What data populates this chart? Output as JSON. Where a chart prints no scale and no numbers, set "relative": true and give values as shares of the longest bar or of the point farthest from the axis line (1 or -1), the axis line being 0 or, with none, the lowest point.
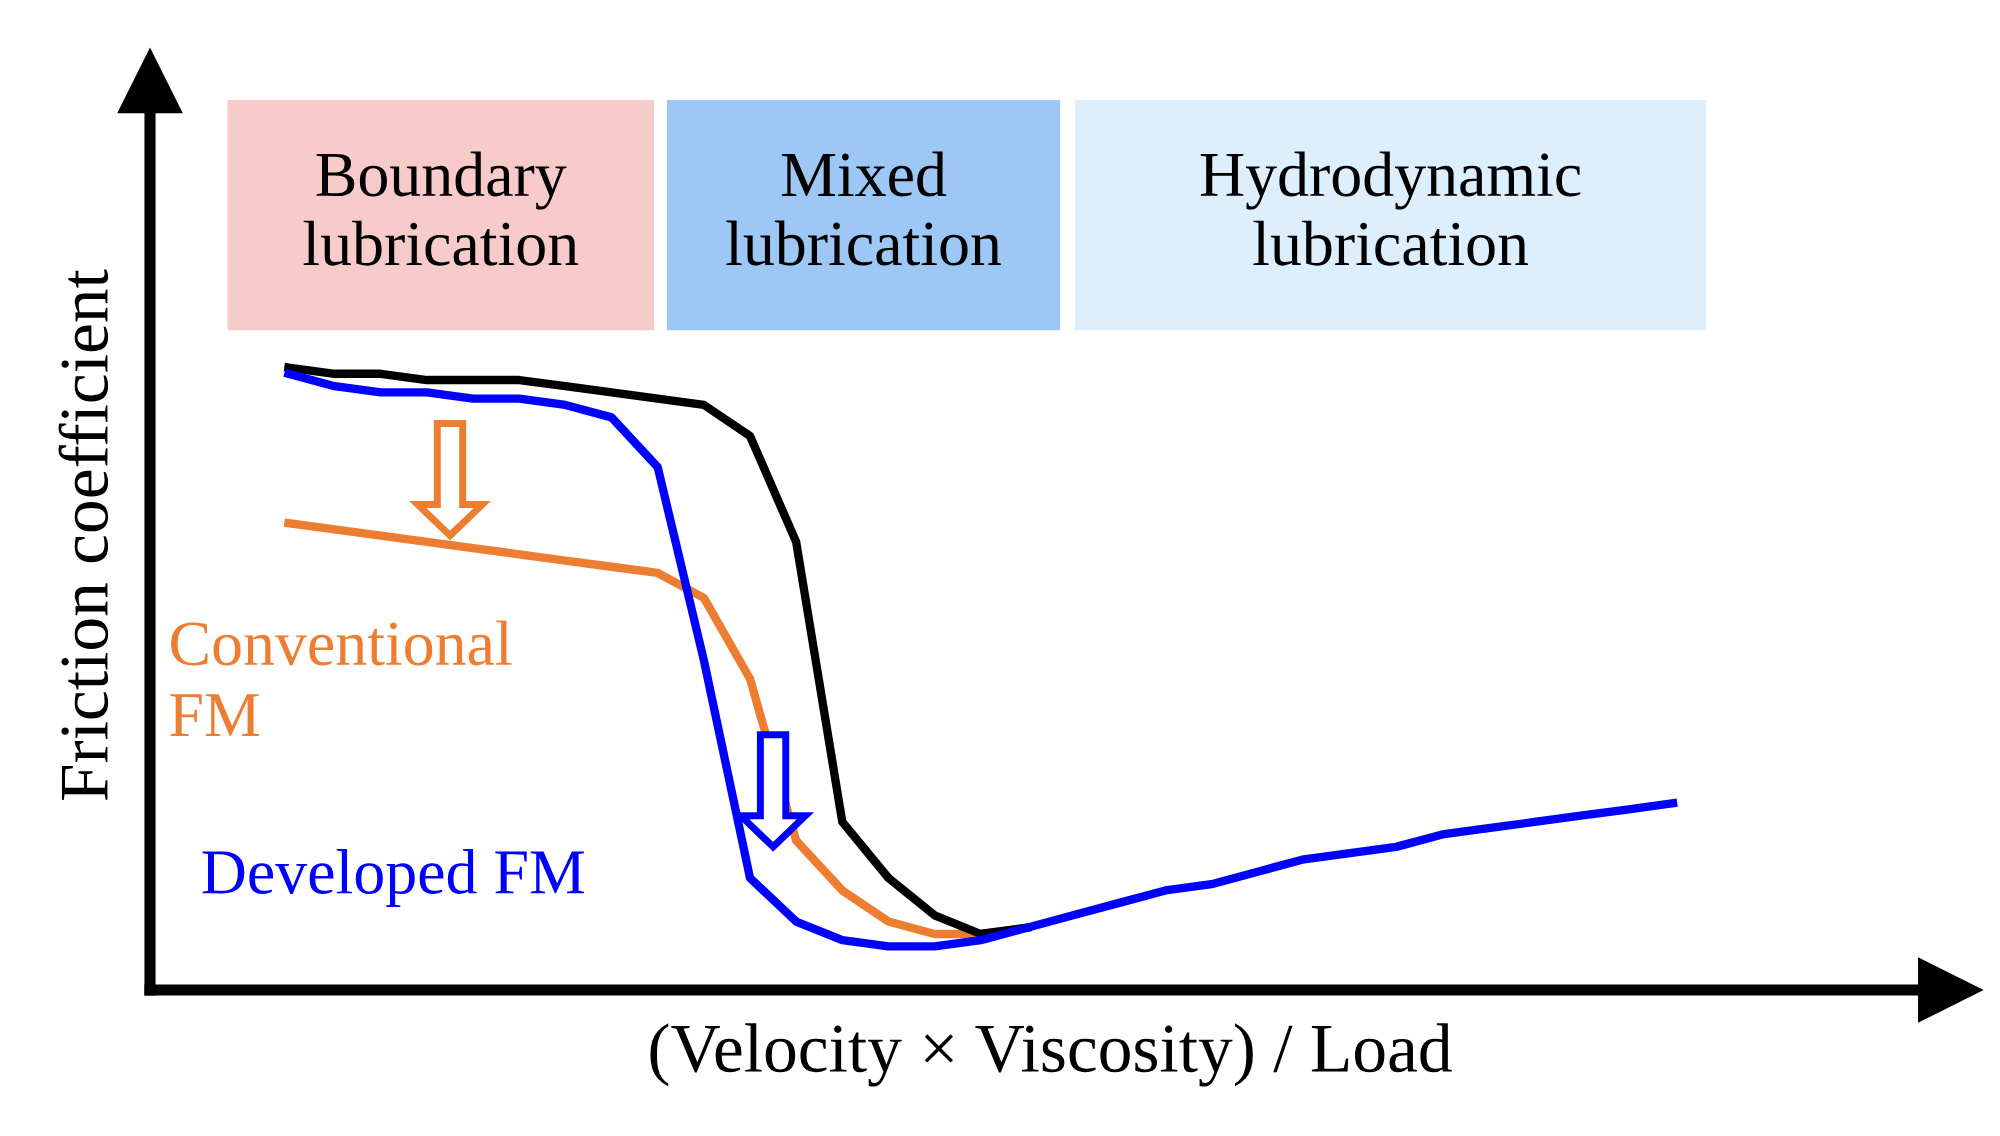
{
  "chart_data": {
    "type": "line",
    "relative": true,
    "xlabel": "(Velocity × Viscosity) / Load",
    "ylabel": "Friction coefficient",
    "categories": [
      null,
      null,
      null,
      null,
      null,
      null,
      null,
      null,
      null,
      null,
      null,
      null,
      null,
      null,
      null,
      null,
      null,
      null,
      null,
      null,
      null,
      null,
      null,
      null,
      null,
      null,
      null,
      null,
      null,
      null,
      null
    ],
    "series": [
      {
        "name": "Conventional FM",
        "color": "#ed7d31",
        "values": [
          0.75,
          0.74,
          0.73,
          0.72,
          0.71,
          0.7,
          0.69,
          0.68,
          0.67,
          0.63,
          0.5,
          0.24,
          0.16,
          0.11,
          0.09,
          0.09,
          0.1,
          null,
          null,
          null,
          null,
          null,
          null,
          null,
          null,
          null,
          null,
          null,
          null,
          null,
          null
        ]
      },
      {
        "color": "#000000",
        "values": [
          1.0,
          0.99,
          0.99,
          0.98,
          0.98,
          0.98,
          0.97,
          0.96,
          0.95,
          0.94,
          0.89,
          0.72,
          0.27,
          0.18,
          0.12,
          0.09,
          0.1,
          null,
          null,
          null,
          null,
          null,
          null,
          null,
          null,
          null,
          null,
          null,
          null,
          null,
          null
        ]
      },
      {
        "name": "Developed FM",
        "color": "#0000ff",
        "values": [
          0.99,
          0.97,
          0.96,
          0.96,
          0.95,
          0.95,
          0.94,
          0.92,
          0.84,
          0.53,
          0.18,
          0.11,
          0.08,
          0.07,
          0.07,
          0.08,
          0.1,
          0.12,
          0.14,
          0.16,
          0.17,
          0.19,
          0.21,
          0.22,
          0.23,
          0.25,
          0.26,
          0.27,
          0.28,
          0.29,
          0.3
        ]
      }
    ],
    "annotations": [
      "Boundary\nlubrication",
      "Mixed\nlubrication",
      "Hydrodynamic\nlubrication"
    ],
    "line_style": "solid",
    "marker": "none"
  }
}
